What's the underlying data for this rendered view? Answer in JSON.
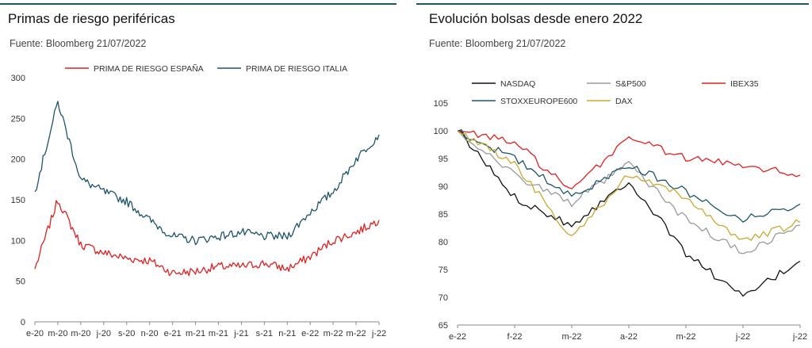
{
  "chart_data": [
    {
      "type": "line",
      "title": "Primas de riesgo periféricas",
      "subtitle": "Fuente: Bloomberg 21/07/2022",
      "legend_position": "top",
      "ylim": [
        0,
        300
      ],
      "yticks": [
        0,
        50,
        100,
        150,
        200,
        250,
        300
      ],
      "x_tick_labels": [
        "e-20",
        "m-20",
        "m-20",
        "j-20",
        "s-20",
        "n-20",
        "e-21",
        "m-21",
        "m-21",
        "j-21",
        "s-21",
        "n-21",
        "e-22",
        "m-22",
        "m-22",
        "j-22"
      ],
      "x": [
        "e-20",
        "m-20",
        "m-20",
        "j-20",
        "s-20",
        "n-20",
        "e-21",
        "m-21",
        "m-21",
        "j-21",
        "s-21",
        "n-21",
        "e-22",
        "m-22",
        "m-22",
        "j-22"
      ],
      "series": [
        {
          "name": "PRIMA DE RIESGO ESPAÑA",
          "color": "#e02020",
          "values": [
            65,
            150,
            95,
            85,
            78,
            75,
            60,
            62,
            68,
            68,
            72,
            65,
            80,
            100,
            110,
            125
          ]
        },
        {
          "name": "PRIMA DE RIESGO ITALIA",
          "color": "#1f5466",
          "values": [
            160,
            270,
            175,
            160,
            148,
            125,
            105,
            100,
            105,
            110,
            105,
            105,
            135,
            160,
            200,
            230
          ]
        }
      ]
    },
    {
      "type": "line",
      "title": "Evolución bolsas desde enero 2022",
      "subtitle": "Fuente: Bloomberg 21/07/2022",
      "legend_position": "top",
      "ylim": [
        65,
        105
      ],
      "yticks": [
        65,
        70,
        75,
        80,
        85,
        90,
        95,
        100,
        105
      ],
      "x_tick_labels": [
        "e-22",
        "f-22",
        "m-22",
        "a-22",
        "m-22",
        "j-22",
        "j-22"
      ],
      "x": [
        "e-22",
        "f-22",
        "m-22",
        "a-22",
        "m-22",
        "j-22",
        "j-22"
      ],
      "series": [
        {
          "name": "NASDAQ",
          "color": "#111111",
          "values": [
            100,
            88,
            83,
            91,
            78,
            70,
            76.5
          ]
        },
        {
          "name": "S&P500",
          "color": "#999999",
          "values": [
            100,
            92,
            87,
            94,
            84,
            78,
            83
          ]
        },
        {
          "name": "IBEX35",
          "color": "#e02020",
          "values": [
            100,
            98,
            89,
            99,
            95,
            94,
            92
          ]
        },
        {
          "name": "STOXXEUROPE600",
          "color": "#1f5466",
          "values": [
            100,
            95,
            88,
            94,
            89,
            84,
            86.8
          ]
        },
        {
          "name": "DAX",
          "color": "#c8a830",
          "values": [
            100,
            94,
            81,
            92,
            88,
            80,
            83.5
          ]
        }
      ]
    }
  ]
}
